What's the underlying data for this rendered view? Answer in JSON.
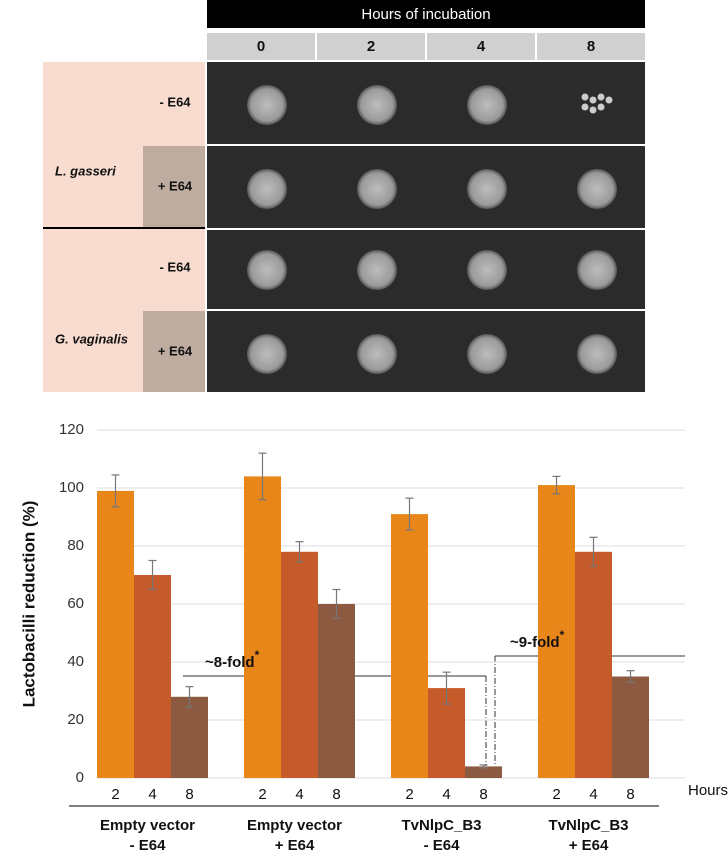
{
  "panel": {
    "header": "Hours of incubation",
    "columns": [
      "0",
      "2",
      "4",
      "8"
    ],
    "groups": [
      {
        "name": "L. gasseri",
        "rows": [
          "- E64",
          "+ E64"
        ]
      },
      {
        "name": "G. vaginalis",
        "rows": [
          "- E64",
          "+ E64"
        ]
      }
    ]
  },
  "chart_data": {
    "type": "bar",
    "ylabel": "Lactobacilli reduction (%)",
    "xlabel": "Hours",
    "categories": [
      [
        "Empty vector",
        "- E64"
      ],
      [
        "Empty vector",
        "+ E64"
      ],
      [
        "TvNlpC_B3",
        "- E64"
      ],
      [
        "TvNlpC_B3",
        "+ E64"
      ]
    ],
    "series": [
      {
        "name": "2",
        "color": "#e8861a",
        "values": [
          99,
          104,
          91,
          101
        ],
        "errors": [
          5.5,
          8,
          5.5,
          3
        ]
      },
      {
        "name": "4",
        "color": "#c55a2a",
        "values": [
          70,
          78,
          31,
          78
        ],
        "errors": [
          5,
          3.5,
          5.5,
          5
        ]
      },
      {
        "name": "8",
        "color": "#8b5a40",
        "values": [
          28,
          60,
          4,
          35
        ],
        "errors": [
          3.5,
          5,
          0.5,
          2
        ]
      }
    ],
    "ylim": [
      0,
      120
    ],
    "yticks": [
      0,
      20,
      40,
      60,
      80,
      100,
      120
    ],
    "grid": true,
    "annotations": [
      {
        "text": "~8-fold",
        "mark": "*"
      },
      {
        "text": "~9-fold",
        "mark": "*"
      }
    ]
  }
}
